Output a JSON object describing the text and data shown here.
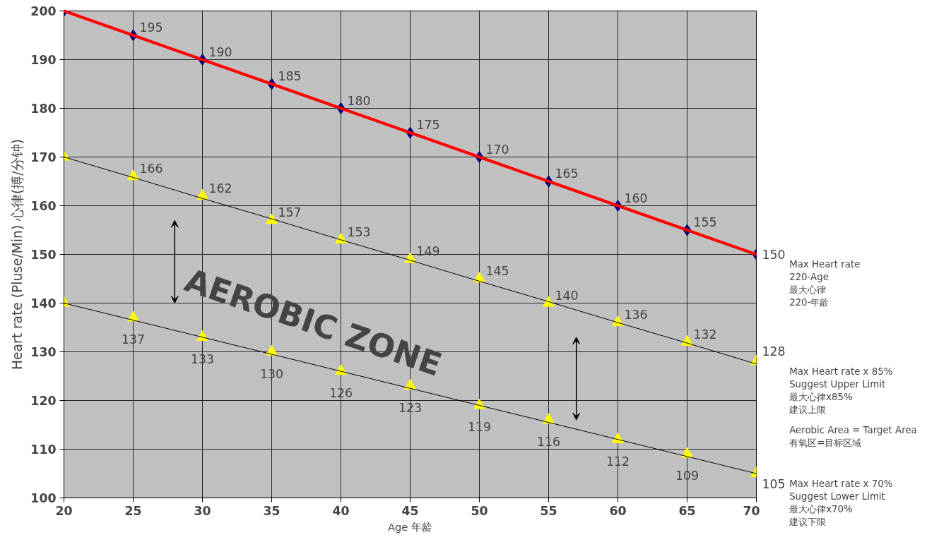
{
  "chart_data": {
    "type": "line",
    "xlabel": "Age 年龄",
    "ylabel": "Heart rate (Pluse/Min) 心律(搏/分钟)",
    "x": [
      20,
      25,
      30,
      35,
      40,
      45,
      50,
      55,
      60,
      65,
      70
    ],
    "series": [
      {
        "color": "#ff0000",
        "values": [
          200,
          195,
          190,
          185,
          180,
          175,
          170,
          165,
          160,
          155,
          150
        ]
      },
      {
        "type": "scatter",
        "color": "#000080",
        "marker": "diamond",
        "values": [
          200,
          195,
          190,
          185,
          180,
          175,
          170,
          165,
          160,
          155,
          150
        ],
        "value_labels": [
          null,
          "195",
          "190",
          "185",
          "180",
          "175",
          "170",
          "165",
          "160",
          "155",
          "150"
        ]
      },
      {
        "color": "#000000",
        "values": [
          170,
          165.8,
          161.5,
          157.3,
          153,
          148.8,
          144.5,
          140.3,
          136,
          131.8,
          127.5
        ]
      },
      {
        "type": "scatter",
        "color": "#ffff00",
        "marker": "triangle",
        "values": [
          170,
          166,
          162,
          157,
          153,
          149,
          145,
          140,
          136,
          132,
          128
        ],
        "value_labels": [
          null,
          "166",
          "162",
          "157",
          "153",
          "149",
          "145",
          "140",
          "136",
          "132",
          "128"
        ]
      },
      {
        "color": "#000000",
        "values": [
          140,
          136.5,
          133,
          129.5,
          126,
          122.5,
          119,
          115.5,
          112,
          108.5,
          105
        ]
      },
      {
        "type": "scatter",
        "color": "#ffff00",
        "marker": "triangle",
        "values": [
          140,
          137,
          133,
          130,
          126,
          123,
          119,
          116,
          112,
          109,
          105
        ],
        "value_labels": [
          null,
          "137",
          "133",
          "130",
          "126",
          "123",
          "119",
          "116",
          "112",
          "109",
          "105"
        ]
      }
    ],
    "annotations": [
      "AEROBIC ZONE",
      "Max Heart rate\n220-Age\n最大心律\n220-年龄",
      "Max Heart rate x 85%\nSuggest Upper Limit\n最大心律x85%\n建议上限",
      "Aerobic Area = Target Area\n有氧区=目标区域",
      "Max Heart rate x 70%\nSuggest Lower Limit\n最大心律x70%\n建议下限"
    ],
    "xlim": [
      20,
      70
    ],
    "ylim": [
      100,
      200
    ],
    "xticks": [
      20,
      25,
      30,
      35,
      40,
      45,
      50,
      55,
      60,
      65,
      70
    ],
    "yticks": [
      100,
      110,
      120,
      130,
      140,
      150,
      160,
      170,
      180,
      190,
      200
    ],
    "grid": true
  }
}
